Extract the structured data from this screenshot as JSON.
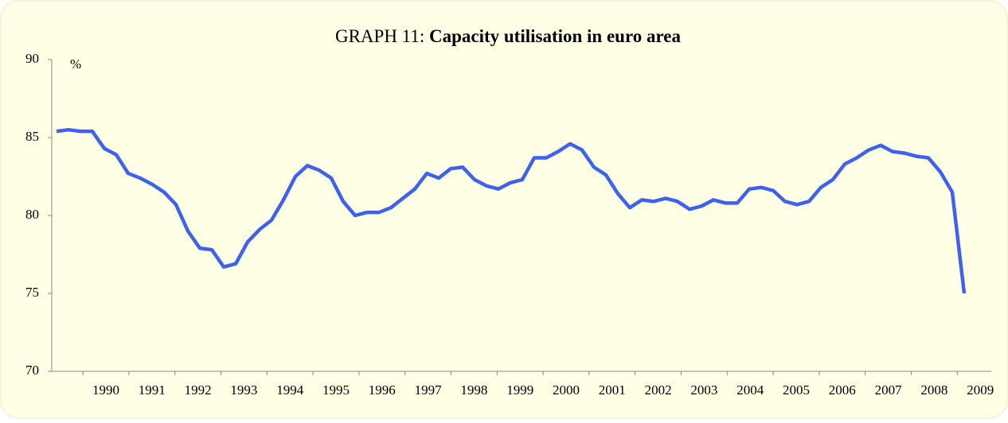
{
  "chart_data": {
    "type": "line",
    "title_prefix": "GRAPH 11:",
    "title": "Capacity utilisation in euro area",
    "y_unit": "%",
    "x_labels": [
      "1990",
      "1991",
      "1992",
      "1993",
      "1994",
      "1995",
      "1996",
      "1997",
      "1998",
      "1999",
      "2000",
      "2001",
      "2002",
      "2003",
      "2004",
      "2005",
      "2006",
      "2007",
      "2008",
      "2009"
    ],
    "values": [
      85.4,
      85.5,
      85.4,
      85.4,
      84.3,
      83.9,
      82.7,
      82.4,
      82.0,
      81.5,
      80.7,
      79.0,
      77.9,
      77.8,
      76.7,
      76.9,
      78.3,
      79.1,
      79.7,
      81.0,
      82.5,
      83.2,
      82.9,
      82.4,
      80.9,
      80.0,
      80.2,
      80.2,
      80.5,
      81.1,
      81.7,
      82.7,
      82.4,
      83.0,
      83.1,
      82.3,
      81.9,
      81.7,
      82.1,
      82.3,
      83.7,
      83.7,
      84.1,
      84.6,
      84.2,
      83.1,
      82.6,
      81.4,
      80.5,
      81.0,
      80.9,
      81.1,
      80.9,
      80.4,
      80.6,
      81.0,
      80.8,
      80.8,
      81.7,
      81.8,
      81.6,
      80.9,
      80.7,
      80.9,
      81.8,
      82.3,
      83.3,
      83.7,
      84.2,
      84.5,
      84.1,
      84.0,
      83.8,
      83.7,
      82.8,
      81.5,
      75.0
    ],
    "color": "#3d62f0",
    "ylim": [
      70,
      90
    ],
    "yticks": [
      70,
      75,
      80,
      85,
      90
    ],
    "grid": false
  }
}
